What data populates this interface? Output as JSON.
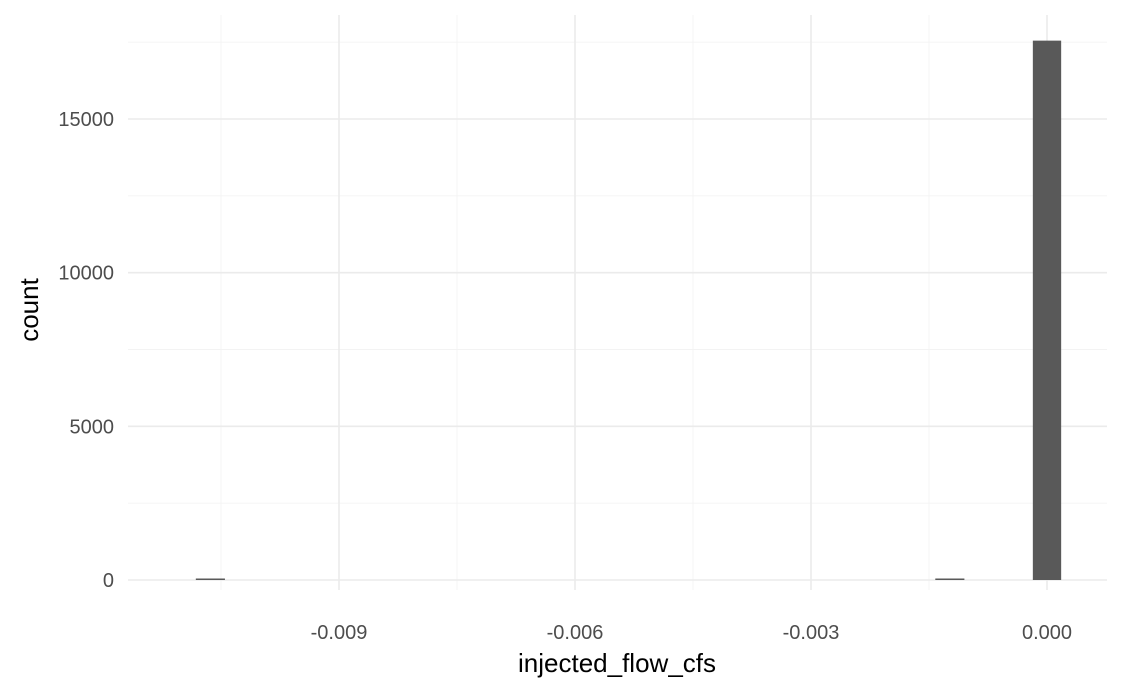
{
  "chart_data": {
    "type": "bar",
    "subtype": "histogram",
    "xlabel": "injected_flow_cfs",
    "ylabel": "count",
    "xlim": [
      -0.01145,
      0.00075
    ],
    "ylim": [
      0,
      18500
    ],
    "x_ticks": [
      -0.009,
      -0.006,
      -0.003,
      0.0
    ],
    "x_tick_labels": [
      "-0.009",
      "-0.006",
      "-0.003",
      "0.000"
    ],
    "x_minor_ticks": [
      -0.0105,
      -0.0075,
      -0.0045,
      -0.0015
    ],
    "y_ticks": [
      0,
      5000,
      10000,
      15000
    ],
    "y_tick_labels": [
      "0",
      "5000",
      "10000",
      "15000"
    ],
    "y_minor_ticks": [
      2500,
      7500,
      12500,
      17500
    ],
    "grid": true,
    "bar_color": "#595959",
    "bins": [
      {
        "x0": -0.01082,
        "x1": -0.01045,
        "count": 15
      },
      {
        "x0": -0.00142,
        "x1": -0.00105,
        "count": 15
      },
      {
        "x0": -0.00018,
        "x1": 0.00018,
        "count": 17550
      }
    ]
  }
}
